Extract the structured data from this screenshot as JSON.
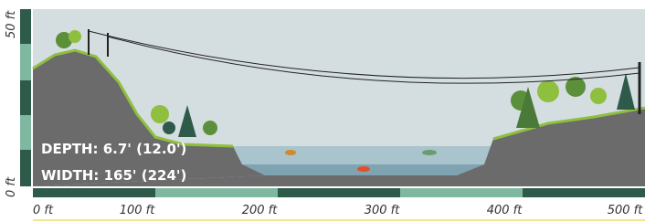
{
  "scale": {
    "top_label": "50 ft",
    "bottom_label": "0 ft"
  },
  "x_axis": {
    "labels": [
      "0 ft",
      "100 ft",
      "200 ft",
      "300 ft",
      "400 ft",
      "500 ft"
    ]
  },
  "overlay": {
    "depth": "DEPTH: 6.7' (12.0')",
    "width": "WIDTH: 165' (224')"
  }
}
